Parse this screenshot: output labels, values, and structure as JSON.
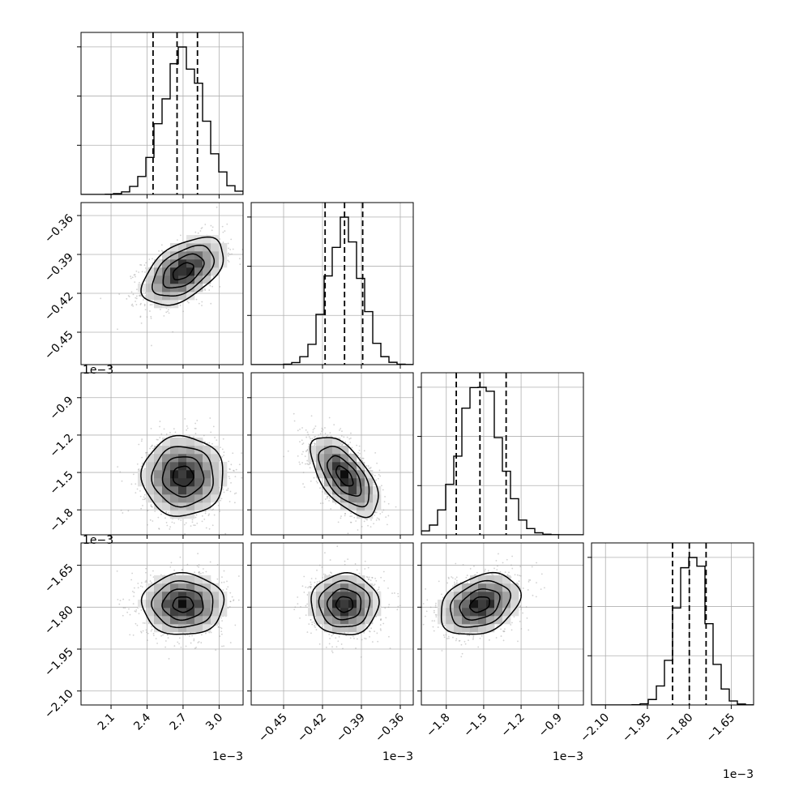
{
  "chart_data": {
    "type": "corner",
    "grid": true,
    "parameters": [
      {
        "range": [
          1.85,
          3.2
        ],
        "ticks": [
          2.1,
          2.4,
          2.7,
          3.0
        ],
        "tick_labels": [
          "2.1",
          "2.4",
          "2.7",
          "3.0"
        ],
        "offset_text": "1e−3",
        "mean": 2.7,
        "sd": 0.17,
        "quantiles": [
          2.45,
          2.65,
          2.82
        ]
      },
      {
        "range": [
          -0.475,
          -0.35
        ],
        "ticks": [
          -0.45,
          -0.42,
          -0.39,
          -0.36
        ],
        "tick_labels": [
          "−0.45",
          "−0.42",
          "−0.39",
          "−0.36"
        ],
        "offset_text": "1e−3",
        "mean": -0.403,
        "sd": 0.013,
        "quantiles": [
          -0.418,
          -0.403,
          -0.389
        ]
      },
      {
        "range": [
          -2.0,
          -0.7
        ],
        "ticks": [
          -1.8,
          -1.5,
          -1.2,
          -0.9
        ],
        "tick_labels": [
          "−1.8",
          "−1.5",
          "−1.2",
          "−0.9"
        ],
        "offset_text": "1e−3",
        "mean": -1.53,
        "sd": 0.16,
        "quantiles": [
          -1.72,
          -1.53,
          -1.32
        ]
      },
      {
        "range": [
          -2.15,
          -1.57
        ],
        "ticks": [
          -2.1,
          -1.95,
          -1.8,
          -1.65
        ],
        "tick_labels": [
          "−2.10",
          "−1.95",
          "−1.80",
          "−1.65"
        ],
        "offset_text": "1e−3",
        "mean": -1.79,
        "sd": 0.055,
        "quantiles": [
          -1.86,
          -1.8,
          -1.74
        ]
      }
    ],
    "correlations": [
      {
        "pair": [
          1,
          0
        ],
        "rho": 0.5
      },
      {
        "pair": [
          2,
          0
        ],
        "rho": 0.0
      },
      {
        "pair": [
          2,
          1
        ],
        "rho": -0.6
      },
      {
        "pair": [
          3,
          0
        ],
        "rho": 0.0
      },
      {
        "pair": [
          3,
          1
        ],
        "rho": 0.0
      },
      {
        "pair": [
          3,
          2
        ],
        "rho": 0.3
      }
    ],
    "bins": 20,
    "contour_levels": [
      0.5,
      1.0,
      1.5,
      2.0
    ]
  }
}
